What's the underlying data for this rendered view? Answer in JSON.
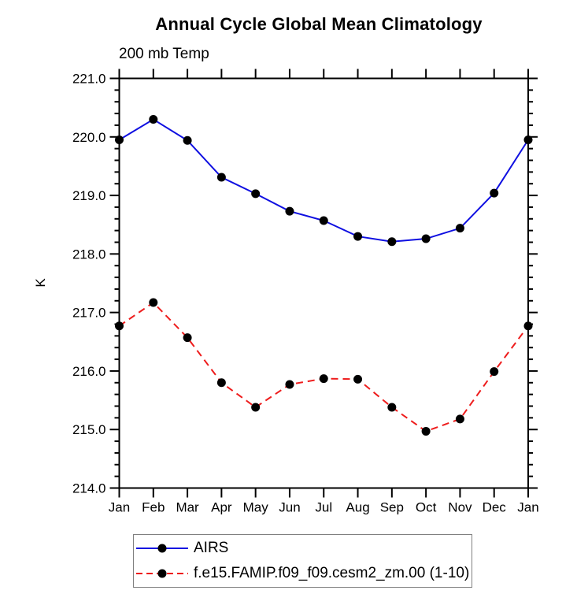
{
  "title": "Annual Cycle Global Mean Climatology",
  "subtitle": "200 mb Temp",
  "ylabel": "K",
  "legend": {
    "items": [
      {
        "label": "AIRS"
      },
      {
        "label": "f.e15.FAMIP.f09_f09.cesm2_zm.00 (1-10)"
      }
    ]
  },
  "chart_data": {
    "type": "line",
    "categories": [
      "Jan",
      "Feb",
      "Mar",
      "Apr",
      "May",
      "Jun",
      "Jul",
      "Aug",
      "Sep",
      "Oct",
      "Nov",
      "Dec",
      "Jan"
    ],
    "series": [
      {
        "name": "AIRS",
        "color": "#0f0fe1",
        "line_style": "solid",
        "marker": "black-dot",
        "values": [
          219.95,
          220.3,
          219.94,
          219.31,
          219.03,
          218.73,
          218.57,
          218.3,
          218.21,
          218.26,
          218.44,
          219.04,
          219.95
        ]
      },
      {
        "name": "f.e15.FAMIP.f09_f09.cesm2_zm.00 (1-10)",
        "color": "#ee1c1c",
        "line_style": "dashed",
        "marker": "black-dot",
        "values": [
          216.77,
          217.17,
          216.57,
          215.8,
          215.38,
          215.77,
          215.87,
          215.86,
          215.38,
          214.97,
          215.18,
          215.99,
          216.77
        ]
      }
    ],
    "ylim": [
      214.0,
      221.0
    ],
    "ytick_labels": [
      "214.0",
      "215.0",
      "216.0",
      "217.0",
      "218.0",
      "219.0",
      "220.0",
      "221.0"
    ],
    "ytick_step": 1.0,
    "yminor_per_major": 5,
    "grid": false,
    "legend_position": "bottom",
    "marker_color": "#000000",
    "axis_color": "#000000"
  }
}
